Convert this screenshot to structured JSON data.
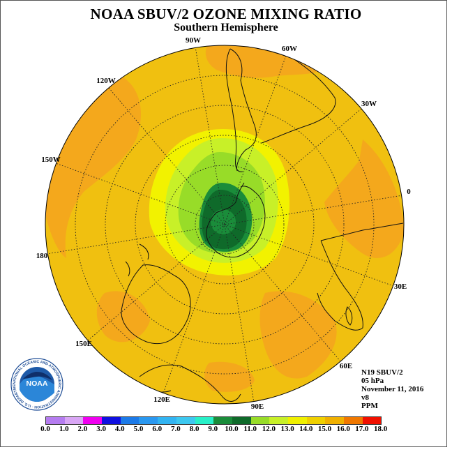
{
  "title": "NOAA SBUV/2 OZONE MIXING RATIO",
  "subtitle": "Southern Hemisphere",
  "longitude_labels": {
    "lon_90w": "90W",
    "lon_60w": "60W",
    "lon_30w": "30W",
    "lon_0": "0",
    "lon_30e": "30E",
    "lon_60e": "60E",
    "lon_90e": "90E",
    "lon_120e": "120E",
    "lon_150e": "150E",
    "lon_180": "180",
    "lon_150w": "150W",
    "lon_120w": "120W"
  },
  "info": {
    "instrument": "N19 SBUV/2",
    "level": "05 hPa",
    "date": "November 11, 2016",
    "version": "v8",
    "units": "PPM"
  },
  "logo": {
    "text": "NOAA",
    "ring_text": "NATIONAL OCEANIC AND ATMOSPHERIC ADMINISTRATION · U.S. DEPARTMENT OF COMMERCE"
  },
  "colorbar": {
    "ticks": [
      "0.0",
      "1.0",
      "2.0",
      "3.0",
      "4.0",
      "5.0",
      "6.0",
      "7.0",
      "8.0",
      "9.0",
      "10.0",
      "11.0",
      "12.0",
      "13.0",
      "14.0",
      "15.0",
      "16.0",
      "17.0",
      "18.0"
    ],
    "colors": [
      "#b57cf0",
      "#d9a6f5",
      "#f000f0",
      "#1010e0",
      "#1c7ae8",
      "#2a98f0",
      "#32b4f2",
      "#3dc8f0",
      "#28f0c8",
      "#1a8c3a",
      "#0f6a2a",
      "#98dc28",
      "#c8f028",
      "#f0f000",
      "#f0d000",
      "#f0b000",
      "#f07800",
      "#f01000",
      "#8a5a3c"
    ]
  },
  "map_colors": {
    "ring_15_16": "#f4a81c",
    "ring_14_15": "#f0c010",
    "ring_13_14": "#f2f200",
    "ring_12_13": "#c8f028",
    "ring_11_12": "#98dc28",
    "ring_10_11": "#1a8c3a",
    "core_9_10": "#0f6a2a"
  }
}
